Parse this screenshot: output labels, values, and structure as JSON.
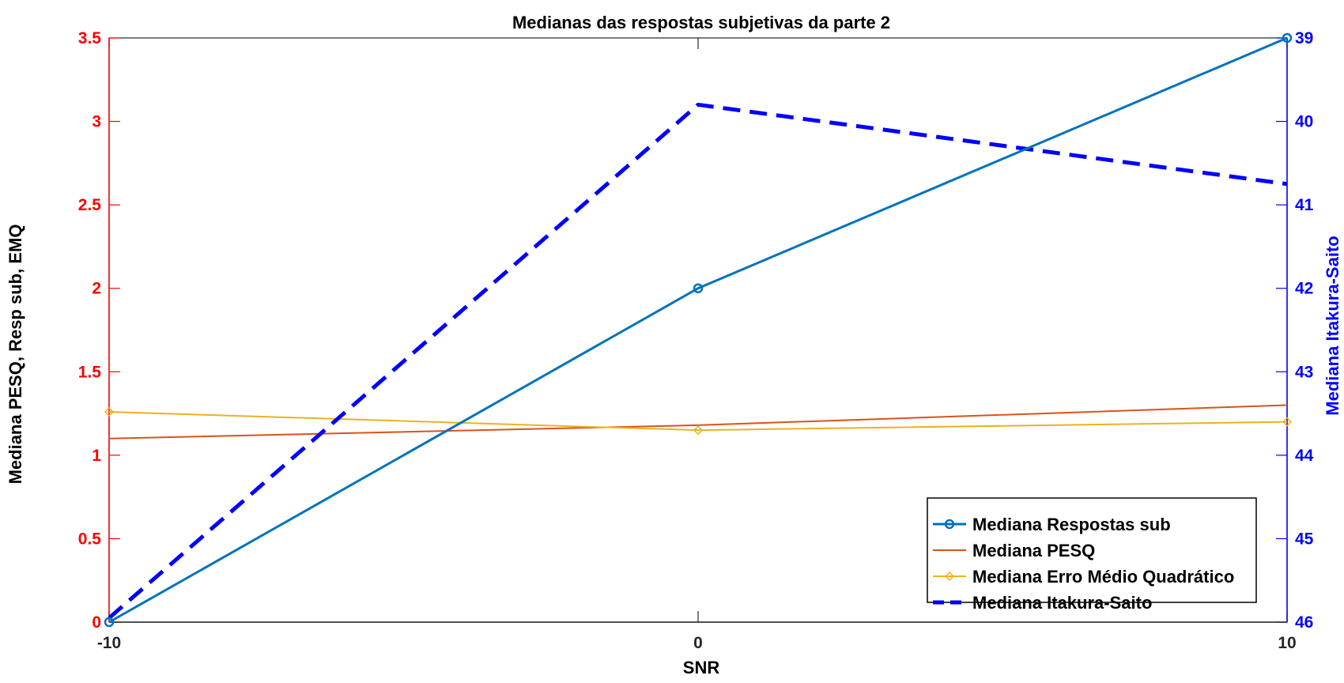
{
  "chart_data": {
    "type": "line",
    "title": "Medianas das respostas subjetivas da parte 2",
    "xlabel": "SNR",
    "ylabel_left": "Mediana PESQ, Resp sub, EMQ",
    "ylabel_right": "Mediana Itakura-Saito",
    "x": [
      -10,
      0,
      10
    ],
    "x_ticks": [
      "-10",
      "0",
      "10"
    ],
    "xlim": [
      -10,
      10
    ],
    "ylim_left": [
      0,
      3.5
    ],
    "y_ticks_left": [
      "0",
      "0.5",
      "1",
      "1.5",
      "2",
      "2.5",
      "3",
      "3.5"
    ],
    "ylim_right": [
      39,
      46
    ],
    "y_right_reversed": true,
    "y_ticks_right": [
      "39",
      "40",
      "41",
      "42",
      "43",
      "44",
      "45",
      "46"
    ],
    "left_axis_color": "#ff0000",
    "right_axis_color": "#0000ff",
    "legend_position": "bottom-right",
    "series": [
      {
        "name": "Mediana Respostas sub",
        "axis": "left",
        "values": [
          0,
          2,
          3.5
        ],
        "color": "#0072bd",
        "marker": "circle",
        "dash": "solid",
        "width": 3
      },
      {
        "name": "Mediana PESQ",
        "axis": "left",
        "values": [
          1.1,
          1.18,
          1.3
        ],
        "color": "#d95319",
        "marker": "none",
        "dash": "solid",
        "width": 2
      },
      {
        "name": "Mediana Erro Médio Quadrático",
        "axis": "left",
        "values": [
          1.26,
          1.15,
          1.2
        ],
        "color": "#edb120",
        "marker": "diamond",
        "dash": "solid",
        "width": 2
      },
      {
        "name": "Mediana Itakura-Saito",
        "axis": "right",
        "values": [
          45.95,
          39.8,
          40.75
        ],
        "color": "#0000ff",
        "marker": "none",
        "dash": "dashed",
        "width": 5
      }
    ]
  }
}
